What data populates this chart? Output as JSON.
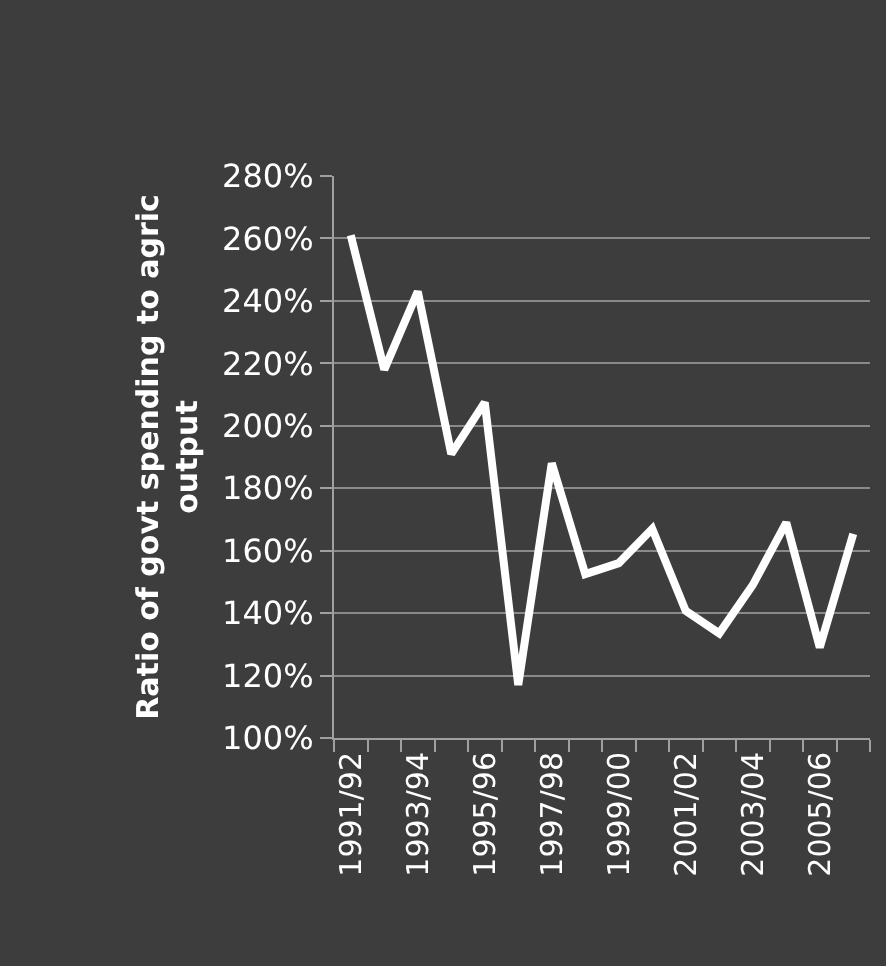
{
  "chart_data": {
    "type": "line",
    "ylabel": "Ratio of govt spending to agric output",
    "categories": [
      "1991/92",
      null,
      "1993/94",
      null,
      "1995/96",
      null,
      "1997/98",
      null,
      "1999/00",
      null,
      "2001/02",
      null,
      "2003/04",
      null,
      "2005/06",
      null
    ],
    "series": [
      {
        "color": "#ffffff",
        "values": [
          261,
          218,
          243,
          191,
          207.5,
          117,
          188,
          152.5,
          156,
          167,
          140.7,
          133.5,
          149,
          169,
          129,
          165.4
        ]
      }
    ],
    "ylim": [
      100,
      280
    ],
    "yticks": [
      {
        "value": 100,
        "label": "100%"
      },
      {
        "value": 120,
        "label": "120%"
      },
      {
        "value": 140,
        "label": "140%"
      },
      {
        "value": 160,
        "label": "160%"
      },
      {
        "value": 180,
        "label": "180%"
      },
      {
        "value": 200,
        "label": "200%"
      },
      {
        "value": 220,
        "label": "220%"
      },
      {
        "value": 240,
        "label": "240%"
      },
      {
        "value": 260,
        "label": "260%"
      },
      {
        "value": 280,
        "label": "280%"
      }
    ],
    "grid": "y",
    "marker": "none",
    "line_style": "solid"
  }
}
